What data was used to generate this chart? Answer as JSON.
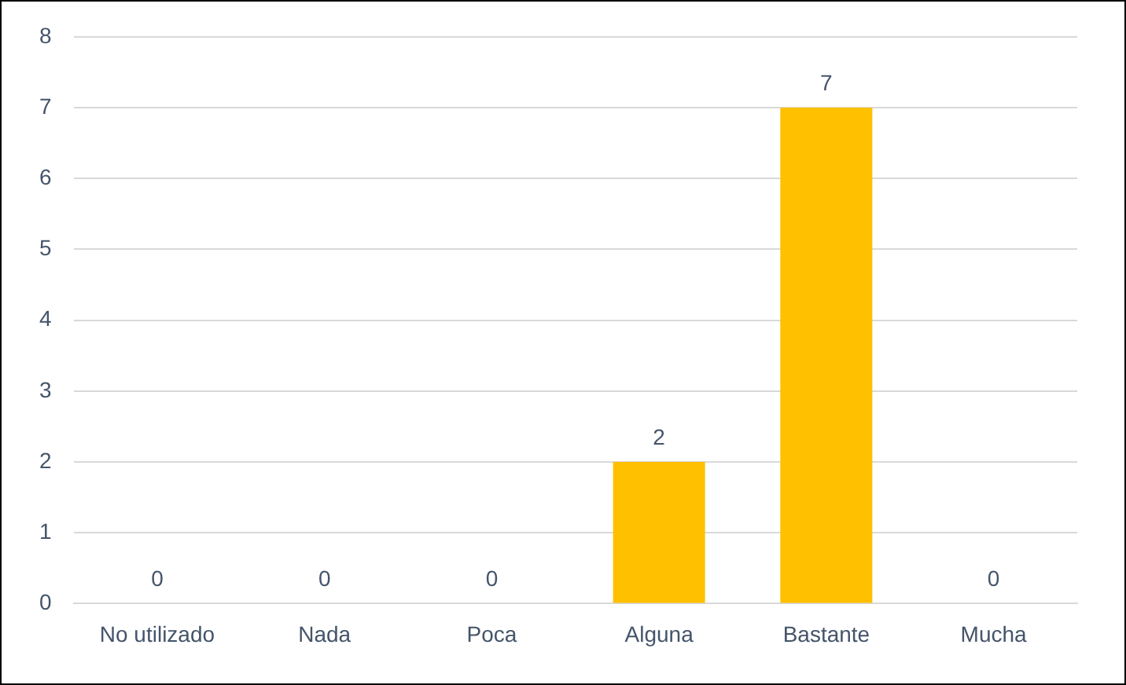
{
  "chart_data": {
    "type": "bar",
    "categories": [
      "No utilizado",
      "Nada",
      "Poca",
      "Alguna",
      "Bastante",
      "Mucha"
    ],
    "values": [
      0,
      0,
      0,
      2,
      7,
      0
    ],
    "color": "#ffc000",
    "ylim": [
      0,
      8
    ],
    "yticks": [
      0,
      1,
      2,
      3,
      4,
      5,
      6,
      7,
      8
    ],
    "grid": "y",
    "data_labels": true,
    "legend": false
  }
}
